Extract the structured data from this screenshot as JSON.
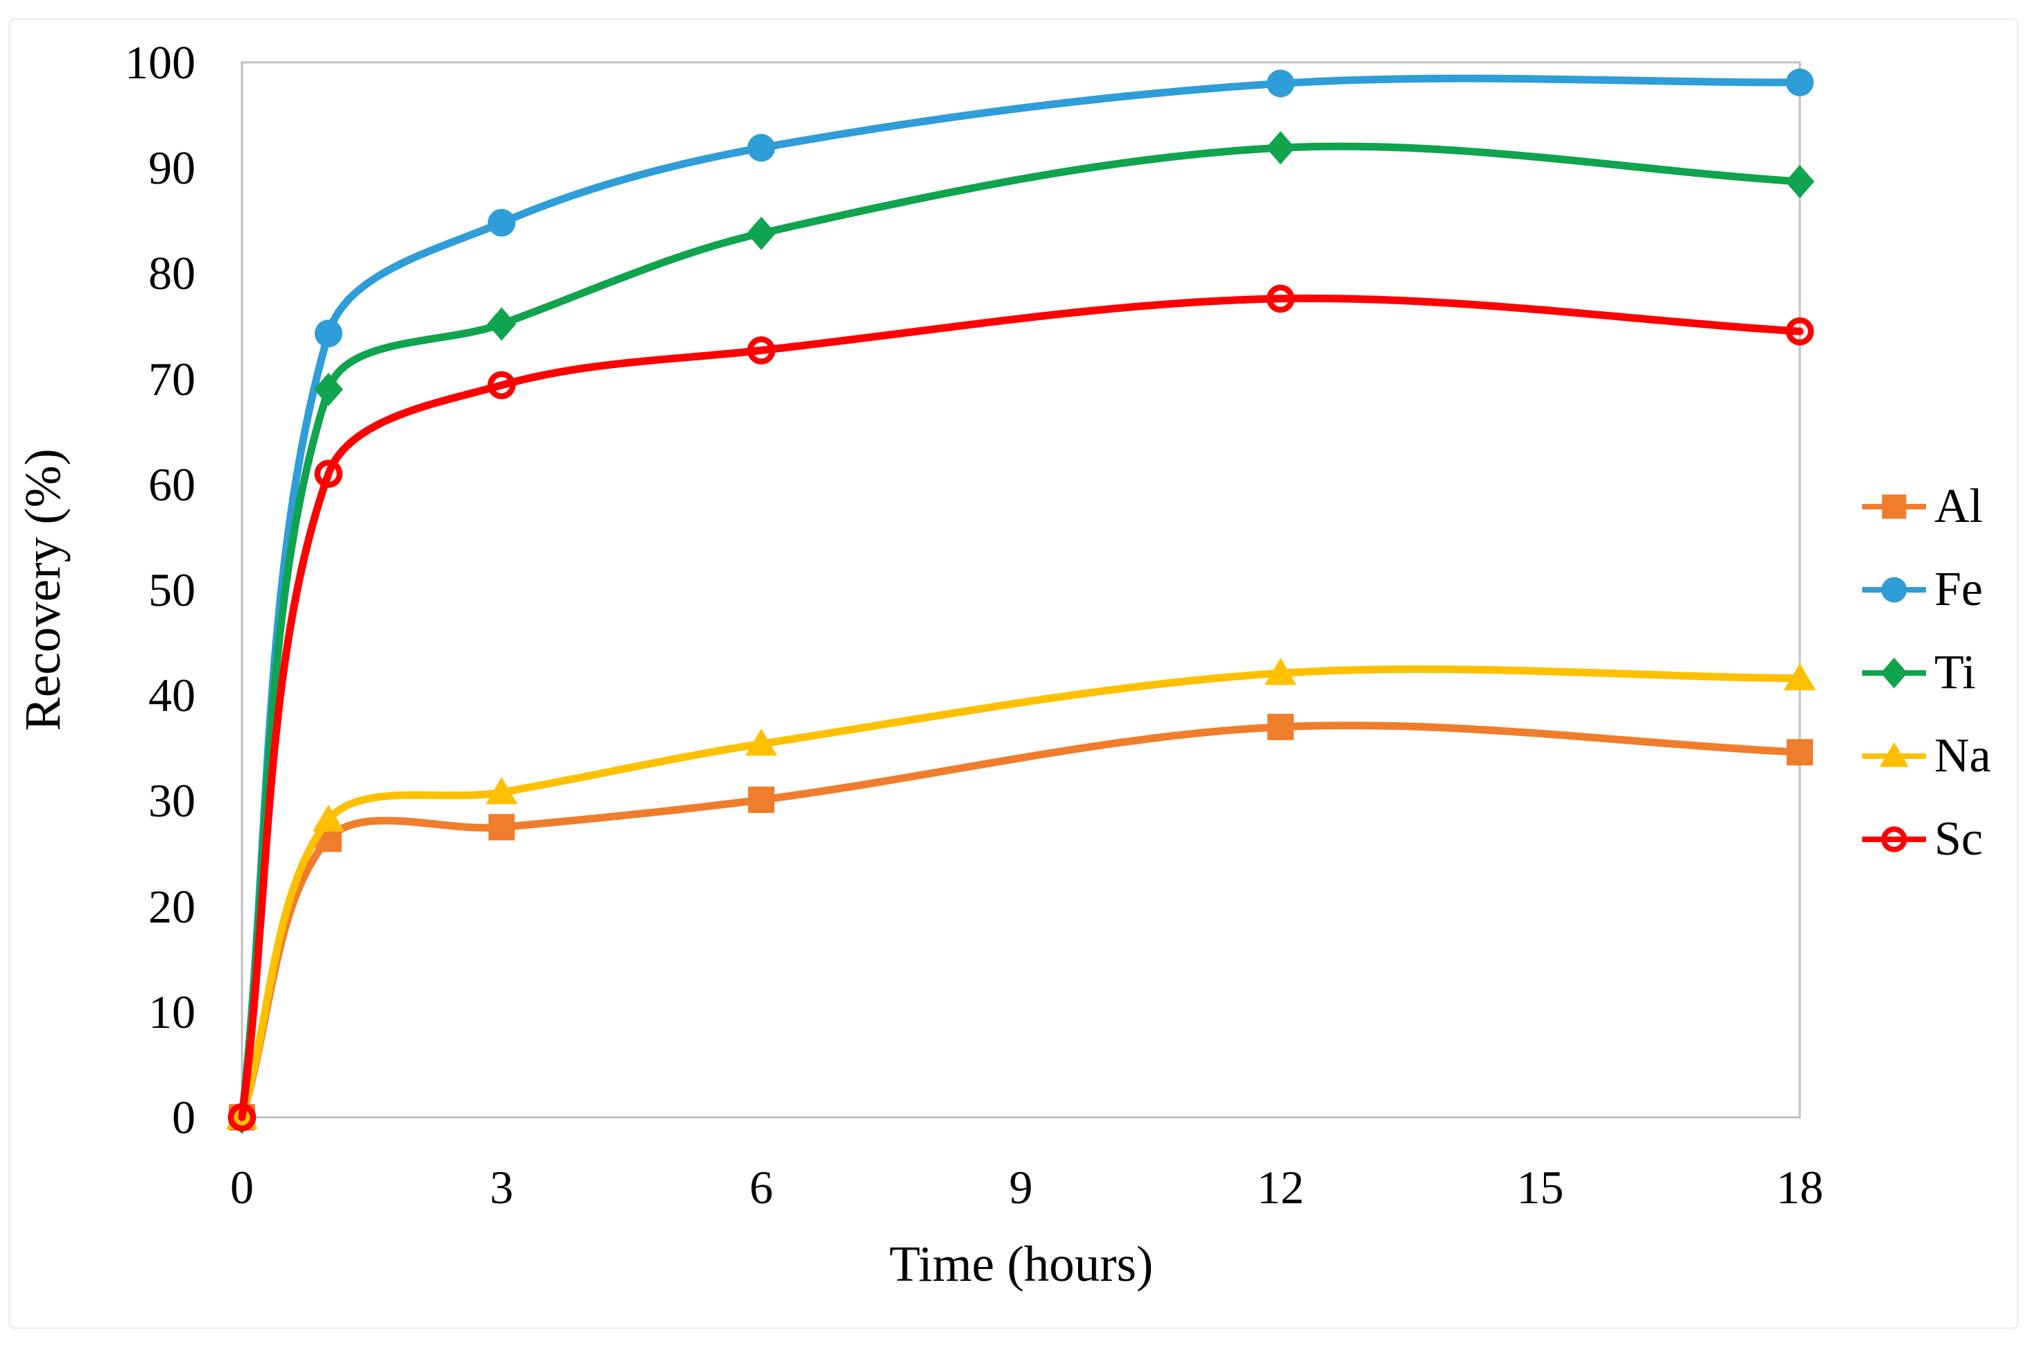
{
  "chart_data": {
    "type": "line",
    "title": "",
    "xlabel": "Time (hours)",
    "ylabel": "Recovery (%)",
    "x": [
      0,
      1,
      3,
      6,
      12,
      18
    ],
    "x_ticks": [
      "0",
      "3",
      "6",
      "9",
      "12",
      "15",
      "18"
    ],
    "y_ticks": [
      "0",
      "10",
      "20",
      "30",
      "40",
      "50",
      "60",
      "70",
      "80",
      "90",
      "100"
    ],
    "xlim": [
      0,
      18
    ],
    "ylim": [
      0,
      100
    ],
    "grid": false,
    "smooth_lines": true,
    "legend_position": "right-center",
    "axis_color": "#BFBFBF",
    "figure_border_color": "#EFEFEF",
    "series": [
      {
        "name": "Al",
        "marker": "square",
        "color": "#F07D2B",
        "values": [
          0,
          26.4,
          27.5,
          30.1,
          37.0,
          34.6
        ]
      },
      {
        "name": "Fe",
        "marker": "circle",
        "color": "#2E9DD8",
        "values": [
          0,
          74.3,
          84.8,
          91.9,
          98.0,
          98.1
        ]
      },
      {
        "name": "Ti",
        "marker": "diamond",
        "color": "#0FA44D",
        "values": [
          0,
          69.0,
          75.2,
          83.8,
          91.9,
          88.7
        ]
      },
      {
        "name": "Na",
        "marker": "triangle",
        "color": "#FFC000",
        "values": [
          0,
          28.2,
          30.8,
          35.4,
          42.1,
          41.6
        ]
      },
      {
        "name": "Sc",
        "marker": "open-circle",
        "color": "#FE0000",
        "values": [
          0,
          61.0,
          69.4,
          72.7,
          77.6,
          74.5
        ]
      }
    ]
  }
}
